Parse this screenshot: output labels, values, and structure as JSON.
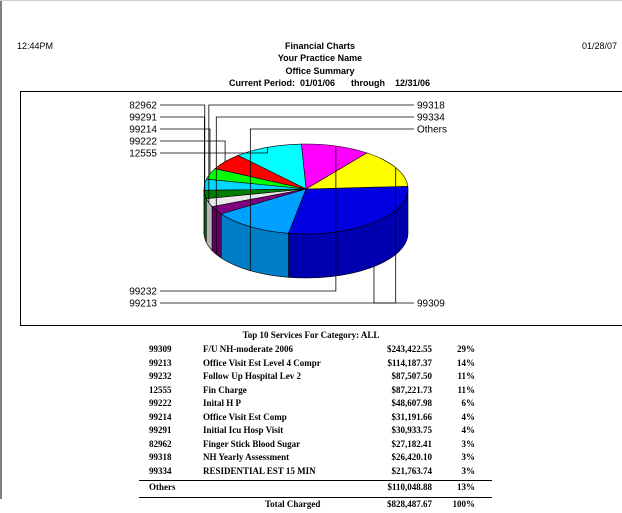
{
  "header": {
    "time": "12:44PM",
    "date": "01/28/07",
    "title": "Financial Charts",
    "practice": "Your Practice Name",
    "report": "Office Summary",
    "period_label": "Current Period:",
    "period_start": "01/01/06",
    "through": "through",
    "period_end": "12/31/06"
  },
  "chart_data": {
    "type": "pie",
    "labels": [
      "99309",
      "99213",
      "99232",
      "12555",
      "99222",
      "99214",
      "99291",
      "82962",
      "99318",
      "99334",
      "Others"
    ],
    "values": [
      29,
      14,
      11,
      11,
      6,
      4,
      4,
      3,
      3,
      3,
      13
    ],
    "colors": [
      "#0000e0",
      "#ffff00",
      "#ff00ff",
      "#00ffff",
      "#ff0000",
      "#00ff00",
      "#00d8ff",
      "#008000",
      "#e8e8e8",
      "#800080",
      "#00a0ff"
    ]
  },
  "table": {
    "title": "Top 10 Services For Category:  ALL",
    "rows": [
      {
        "code": "99309",
        "desc": "F/U NH-moderate  2006",
        "amount": "$243,422.55",
        "pct": "29%"
      },
      {
        "code": "99213",
        "desc": "Office Visit Est Level 4 Compr",
        "amount": "$114,187.37",
        "pct": "14%"
      },
      {
        "code": "99232",
        "desc": "Follow Up Hospital Lev 2",
        "amount": "$87,507.50",
        "pct": "11%"
      },
      {
        "code": "12555",
        "desc": "Fin Charge",
        "amount": "$87,221.73",
        "pct": "11%"
      },
      {
        "code": "99222",
        "desc": "Inital H P",
        "amount": "$48,607.98",
        "pct": "6%"
      },
      {
        "code": "99214",
        "desc": "Office Visit Est Comp",
        "amount": "$31,191.66",
        "pct": "4%"
      },
      {
        "code": "99291",
        "desc": "Initial Icu Hosp Visit",
        "amount": "$30,933.75",
        "pct": "4%"
      },
      {
        "code": "82962",
        "desc": "Finger Stick Blood Sugar",
        "amount": "$27,182.41",
        "pct": "3%"
      },
      {
        "code": "99318",
        "desc": "NH Yearly Assessment",
        "amount": "$26,420.10",
        "pct": "3%"
      },
      {
        "code": "99334",
        "desc": "RESIDENTIAL EST 15 MIN",
        "amount": "$21,763.74",
        "pct": "3%"
      }
    ],
    "others": {
      "code": "Others",
      "amount": "$110,048.88",
      "pct": "13%"
    },
    "total": {
      "label": "Total Charged",
      "amount": "$828,487.67",
      "pct": "100%"
    }
  }
}
